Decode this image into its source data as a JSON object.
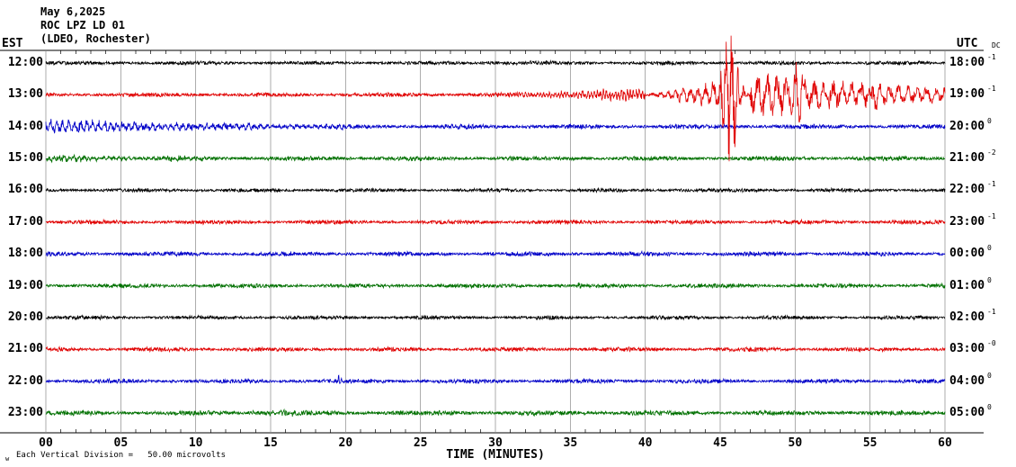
{
  "header": {
    "date": "May 6,2025",
    "station": "ROC LPZ LD 01",
    "network": "(LDEO, Rochester)"
  },
  "axes": {
    "left_label": "EST",
    "right_label": "UTC",
    "dc_label": "DC",
    "x_ticks": [
      "00",
      "05",
      "10",
      "15",
      "20",
      "25",
      "30",
      "35",
      "40",
      "45",
      "50",
      "55",
      "60"
    ],
    "x_title": "TIME (MINUTES)"
  },
  "footer": {
    "corner_mark": "w",
    "scale_note": "Each Vertical Division =   50.00 microvolts"
  },
  "colors": {
    "black": "#000000",
    "red": "#e00000",
    "blue": "#0000c8",
    "green": "#007000",
    "grid": "#888888",
    "frame": "#000000"
  },
  "chart_data": {
    "type": "line",
    "title": "Helicorder seismogram, station ROC LPZ LD 01 (LDEO, Rochester), May 6, 2025",
    "x_range_minutes": [
      0,
      60
    ],
    "vertical_division_microvolts": 50.0,
    "traces": [
      {
        "est": "12:00",
        "utc": "18:00",
        "dc": "-1",
        "color": "black",
        "base_amp": 2.0,
        "bursts": [
          {
            "t0": 29,
            "t1": 34,
            "amp": 1.6,
            "shape": "flat"
          }
        ]
      },
      {
        "est": "13:00",
        "utc": "19:00",
        "dc": "-1",
        "color": "red",
        "on_top": true,
        "base_amp": 2.2,
        "bursts": [
          {
            "t0": 29,
            "t1": 40,
            "amp": 7,
            "shape": "ramp",
            "freq": 5
          },
          {
            "t0": 40,
            "t1": 44.8,
            "amp": 16,
            "shape": "ramp",
            "freq": 2.0
          },
          {
            "t0": 44.3,
            "t1": 47.0,
            "amp": 90,
            "shape": "spike",
            "freq": 2.6
          },
          {
            "t0": 47,
            "t1": 60,
            "amp": 28,
            "shape": "decay",
            "k": 1.2,
            "freq": 1.6
          },
          {
            "t0": 49.3,
            "t1": 51.3,
            "amp": 28,
            "shape": "spike",
            "freq": 2.2
          },
          {
            "t0": 54.5,
            "t1": 56.2,
            "amp": 12,
            "shape": "spike",
            "freq": 2.5
          }
        ]
      },
      {
        "est": "14:00",
        "utc": "20:00",
        "dc": "0",
        "color": "blue",
        "base_amp": 2.4,
        "bursts": [
          {
            "t0": 0,
            "t1": 20,
            "amp": 8,
            "shape": "decay",
            "k": 1.5,
            "freq": 2.5
          }
        ]
      },
      {
        "est": "15:00",
        "utc": "21:00",
        "dc": "-2",
        "color": "green",
        "base_amp": 2.4,
        "bursts": [
          {
            "t0": 0,
            "t1": 12,
            "amp": 3.5,
            "shape": "decay",
            "k": 1.6,
            "freq": 3
          }
        ]
      },
      {
        "est": "16:00",
        "utc": "22:00",
        "dc": "-1",
        "color": "black",
        "base_amp": 2.0,
        "bursts": [
          {
            "t0": 42,
            "t1": 43,
            "amp": 3.5,
            "shape": "spike",
            "freq": 6
          }
        ]
      },
      {
        "est": "17:00",
        "utc": "23:00",
        "dc": "-1",
        "color": "red",
        "base_amp": 2.2,
        "bursts": [
          {
            "t0": 27.5,
            "t1": 29,
            "amp": 2,
            "shape": "flat"
          }
        ]
      },
      {
        "est": "18:00",
        "utc": "00:00",
        "dc": "0",
        "color": "blue",
        "base_amp": 2.3,
        "bursts": []
      },
      {
        "est": "19:00",
        "utc": "01:00",
        "dc": "0",
        "color": "green",
        "base_amp": 2.3,
        "bursts": [
          {
            "t0": 35.2,
            "t1": 36,
            "amp": 2.5,
            "shape": "spike",
            "freq": 5
          }
        ]
      },
      {
        "est": "20:00",
        "utc": "02:00",
        "dc": "-1",
        "color": "black",
        "base_amp": 2.0,
        "bursts": []
      },
      {
        "est": "21:00",
        "utc": "03:00",
        "dc": "-0",
        "color": "red",
        "base_amp": 2.2,
        "bursts": [
          {
            "t0": 0.3,
            "t1": 1.2,
            "amp": 2.5,
            "shape": "spike",
            "freq": 5
          }
        ]
      },
      {
        "est": "22:00",
        "utc": "04:00",
        "dc": "0",
        "color": "blue",
        "base_amp": 2.3,
        "bursts": [
          {
            "t0": 19.2,
            "t1": 20,
            "amp": 5,
            "shape": "spike",
            "freq": 6
          }
        ]
      },
      {
        "est": "23:00",
        "utc": "05:00",
        "dc": "0",
        "color": "green",
        "base_amp": 2.6,
        "bursts": [
          {
            "t0": 13.5,
            "t1": 16.5,
            "amp": 2,
            "shape": "flat"
          }
        ]
      }
    ]
  }
}
